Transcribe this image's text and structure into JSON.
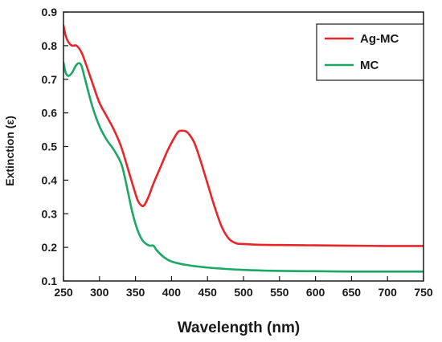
{
  "chart_data": {
    "type": "line",
    "xlabel": "Wavelength (nm)",
    "ylabel": "Extinction (ε)",
    "xlim": [
      250,
      750
    ],
    "ylim": [
      0.1,
      0.9
    ],
    "x_ticks": [
      "250",
      "300",
      "350",
      "400",
      "450",
      "500",
      "550",
      "600",
      "650",
      "700",
      "750"
    ],
    "y_ticks": [
      "0.1",
      "0.2",
      "0.3",
      "0.4",
      "0.5",
      "0.6",
      "0.7",
      "0.8",
      "0.9"
    ],
    "grid": false,
    "legend_position": "top-right",
    "series": [
      {
        "name": "Ag-MC",
        "color": "#e8262a",
        "x": [
          250,
          253,
          257,
          262,
          268,
          275,
          282,
          290,
          300,
          310,
          320,
          330,
          340,
          347,
          353,
          358,
          362,
          368,
          375,
          385,
          395,
          405,
          410,
          415,
          420,
          425,
          432,
          440,
          450,
          460,
          470,
          480,
          490,
          500,
          520,
          550,
          600,
          650,
          700,
          750
        ],
        "y": [
          0.86,
          0.83,
          0.81,
          0.8,
          0.8,
          0.78,
          0.74,
          0.69,
          0.63,
          0.59,
          0.55,
          0.5,
          0.43,
          0.38,
          0.34,
          0.325,
          0.325,
          0.35,
          0.39,
          0.44,
          0.49,
          0.53,
          0.545,
          0.547,
          0.545,
          0.535,
          0.51,
          0.46,
          0.39,
          0.32,
          0.26,
          0.225,
          0.212,
          0.21,
          0.208,
          0.207,
          0.206,
          0.205,
          0.204,
          0.204
        ]
      },
      {
        "name": "MC",
        "color": "#1aa864",
        "x": [
          250,
          253,
          257,
          262,
          267,
          271,
          275,
          280,
          290,
          300,
          310,
          320,
          330,
          335,
          340,
          345,
          350,
          355,
          360,
          365,
          370,
          375,
          380,
          390,
          400,
          420,
          450,
          500,
          550,
          600,
          650,
          700,
          750
        ],
        "y": [
          0.75,
          0.72,
          0.71,
          0.72,
          0.74,
          0.748,
          0.74,
          0.7,
          0.62,
          0.56,
          0.52,
          0.49,
          0.45,
          0.41,
          0.36,
          0.31,
          0.27,
          0.24,
          0.22,
          0.21,
          0.205,
          0.205,
          0.19,
          0.17,
          0.158,
          0.148,
          0.14,
          0.133,
          0.13,
          0.129,
          0.128,
          0.128,
          0.128
        ]
      }
    ]
  }
}
